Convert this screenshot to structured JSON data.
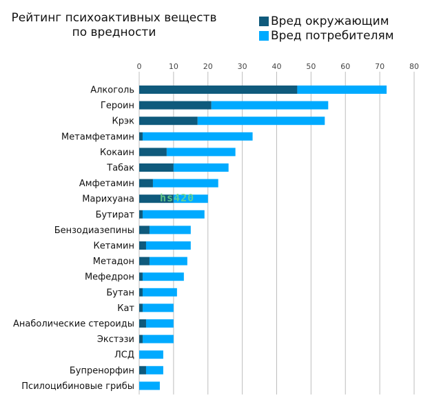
{
  "chart_data": {
    "type": "bar",
    "orientation": "horizontal",
    "stacked": true,
    "title": "Рейтинг психоактивных веществ по вредности",
    "title_lines": [
      "Рейтинг психоактивных веществ",
      "по вредности"
    ],
    "legend_placement": "top-right",
    "grid": true,
    "xlim": [
      0,
      80
    ],
    "xticks": [
      0,
      10,
      20,
      30,
      40,
      50,
      60,
      70,
      80
    ],
    "categories": [
      "Алкоголь",
      "Героин",
      "Крэк",
      "Метамфетамин",
      "Кокаин",
      "Табак",
      "Амфетамин",
      "Марихуана",
      "Бутират",
      "Бензодиазепины",
      "Кетамин",
      "Метадон",
      "Мефедрон",
      "Бутан",
      "Кат",
      "Анаболические стероиды",
      "Экстэзи",
      "ЛСД",
      "Бупренорфин",
      "Псилоцибиновые грибы"
    ],
    "series": [
      {
        "name": "Вред окружающим",
        "color": "#0f5a7c",
        "values": [
          46,
          21,
          17,
          1,
          8,
          10,
          4,
          10,
          1,
          3,
          2,
          3,
          1,
          1,
          1,
          2,
          1,
          0,
          2,
          0
        ]
      },
      {
        "name": "Вред потребителям",
        "color": "#00aaff",
        "values": [
          26,
          34,
          37,
          32,
          20,
          16,
          19,
          10,
          18,
          12,
          13,
          11,
          12,
          10,
          9,
          8,
          9,
          7,
          5,
          6
        ]
      }
    ]
  },
  "watermark": "hs420"
}
